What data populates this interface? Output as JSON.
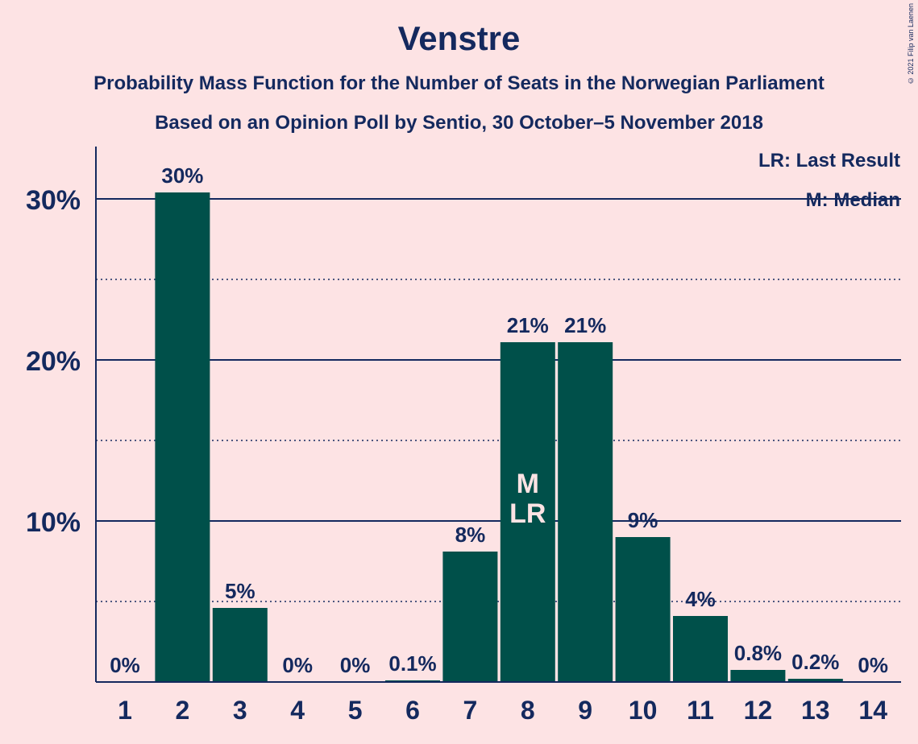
{
  "title": "Venstre",
  "subtitle_1": "Probability Mass Function for the Number of Seats in the Norwegian Parliament",
  "subtitle_2": "Based on an Opinion Poll by Sentio, 30 October–5 November 2018",
  "copyright": "© 2021 Filip van Laenen",
  "legend": {
    "last_result": "LR: Last Result",
    "median": "M: Median"
  },
  "colors": {
    "background": "#fde3e4",
    "bar": "#00504a",
    "text": "#14295e",
    "marker_text": "#fde3e4"
  },
  "chart_data": {
    "type": "bar",
    "categories": [
      "1",
      "2",
      "3",
      "4",
      "5",
      "6",
      "7",
      "8",
      "9",
      "10",
      "11",
      "12",
      "13",
      "14"
    ],
    "values": [
      0,
      30.4,
      4.6,
      0,
      0,
      0.1,
      8.1,
      21.1,
      21.1,
      9.0,
      4.1,
      0.75,
      0.2,
      0
    ],
    "labels": [
      "0%",
      "30%",
      "5%",
      "0%",
      "0%",
      "0.1%",
      "8%",
      "21%",
      "21%",
      "9%",
      "4%",
      "0.8%",
      "0.2%",
      "0%"
    ],
    "ylim": [
      0,
      30
    ],
    "yticks": [
      10,
      20,
      30
    ],
    "ytick_labels": [
      "10%",
      "20%",
      "30%"
    ],
    "minor_gridlines": [
      5,
      15,
      25
    ],
    "markers": [
      {
        "category": "8",
        "lines": [
          "M",
          "LR"
        ]
      }
    ],
    "grid": true,
    "legend_position": "top-right"
  }
}
